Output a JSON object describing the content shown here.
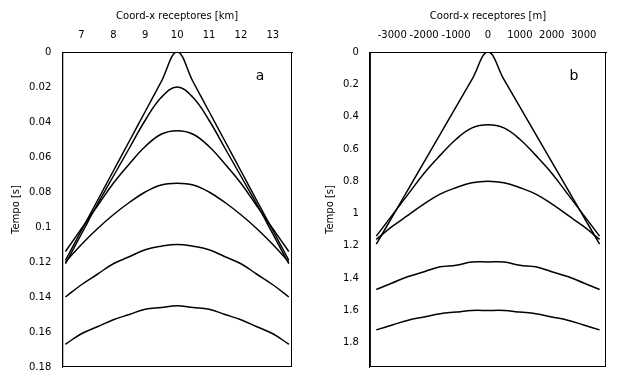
{
  "chart_data": [
    {
      "type": "line",
      "panel": "a",
      "x_label": "Coord-x receptores [km]",
      "y_label": "Tempo [s]",
      "x": [
        6.5,
        7,
        7.5,
        8,
        8.5,
        9,
        9.5,
        10,
        10.5,
        11,
        11.5,
        12,
        12.5,
        13,
        13.5
      ],
      "xlim": [
        6.4,
        13.6
      ],
      "xticks": [
        7,
        8,
        9,
        10,
        11,
        12,
        13
      ],
      "ylim": [
        0,
        0.18
      ],
      "yticks": [
        0,
        0.02,
        0.04,
        0.06,
        0.08,
        0.1,
        0.12,
        0.14,
        0.16,
        0.18
      ],
      "grid": false,
      "series": [
        {
          "color": "#000000",
          "values": [
            0.119,
            0.102,
            0.085,
            0.068,
            0.051,
            0.034,
            0.017,
            0,
            0.017,
            0.034,
            0.051,
            0.068,
            0.085,
            0.102,
            0.119
          ]
        },
        {
          "color": "#000000",
          "values": [
            0.121,
            0.104,
            0.087,
            0.071,
            0.055,
            0.039,
            0.026,
            0.02,
            0.026,
            0.039,
            0.055,
            0.071,
            0.087,
            0.104,
            0.121
          ]
        },
        {
          "color": "#000000",
          "values": [
            0.114,
            0.101,
            0.088,
            0.075,
            0.064,
            0.054,
            0.047,
            0.045,
            0.047,
            0.054,
            0.064,
            0.075,
            0.088,
            0.101,
            0.114
          ]
        },
        {
          "color": "#000000",
          "values": [
            0.12,
            0.11,
            0.101,
            0.093,
            0.086,
            0.08,
            0.076,
            0.075,
            0.076,
            0.08,
            0.086,
            0.093,
            0.101,
            0.11,
            0.12
          ]
        },
        {
          "color": "#000000",
          "values": [
            0.14,
            0.133,
            0.127,
            0.121,
            0.117,
            0.113,
            0.111,
            0.11,
            0.111,
            0.113,
            0.117,
            0.121,
            0.127,
            0.133,
            0.14
          ]
        },
        {
          "color": "#000000",
          "values": [
            0.167,
            0.161,
            0.157,
            0.153,
            0.15,
            0.147,
            0.146,
            0.145,
            0.146,
            0.147,
            0.15,
            0.153,
            0.157,
            0.161,
            0.167
          ]
        }
      ]
    },
    {
      "type": "line",
      "panel": "b",
      "x_label": "Coord-x receptores [m]",
      "y_label": "Tempo [s]",
      "x": [
        -3500,
        -3000,
        -2500,
        -2000,
        -1500,
        -1000,
        -500,
        0,
        500,
        1000,
        1500,
        2000,
        2500,
        3000,
        3500
      ],
      "xlim": [
        -3700,
        3700
      ],
      "xticks": [
        -3000,
        -2000,
        -1000,
        0,
        1000,
        2000,
        3000
      ],
      "ylim": [
        0,
        1.95
      ],
      "yticks": [
        0,
        0.2,
        0.4,
        0.6,
        0.8,
        1,
        1.2,
        1.4,
        1.6,
        1.8
      ],
      "grid": false,
      "series": [
        {
          "color": "#000000",
          "values": [
            1.19,
            1.02,
            0.85,
            0.68,
            0.51,
            0.34,
            0.17,
            0,
            0.17,
            0.34,
            0.51,
            0.68,
            0.85,
            1.02,
            1.19
          ]
        },
        {
          "color": "#000000",
          "values": [
            1.14,
            1.01,
            0.88,
            0.75,
            0.64,
            0.54,
            0.47,
            0.45,
            0.47,
            0.54,
            0.64,
            0.75,
            0.88,
            1.01,
            1.14
          ]
        },
        {
          "color": "#000000",
          "values": [
            1.16,
            1.08,
            1.01,
            0.94,
            0.88,
            0.84,
            0.81,
            0.8,
            0.81,
            0.84,
            0.88,
            0.94,
            1.01,
            1.08,
            1.16
          ]
        },
        {
          "color": "#000000",
          "values": [
            1.47,
            1.43,
            1.39,
            1.36,
            1.33,
            1.32,
            1.3,
            1.3,
            1.3,
            1.32,
            1.33,
            1.36,
            1.39,
            1.43,
            1.47
          ]
        },
        {
          "color": "#000000",
          "values": [
            1.72,
            1.69,
            1.66,
            1.64,
            1.62,
            1.61,
            1.6,
            1.6,
            1.6,
            1.61,
            1.62,
            1.64,
            1.66,
            1.69,
            1.72
          ]
        }
      ]
    }
  ]
}
